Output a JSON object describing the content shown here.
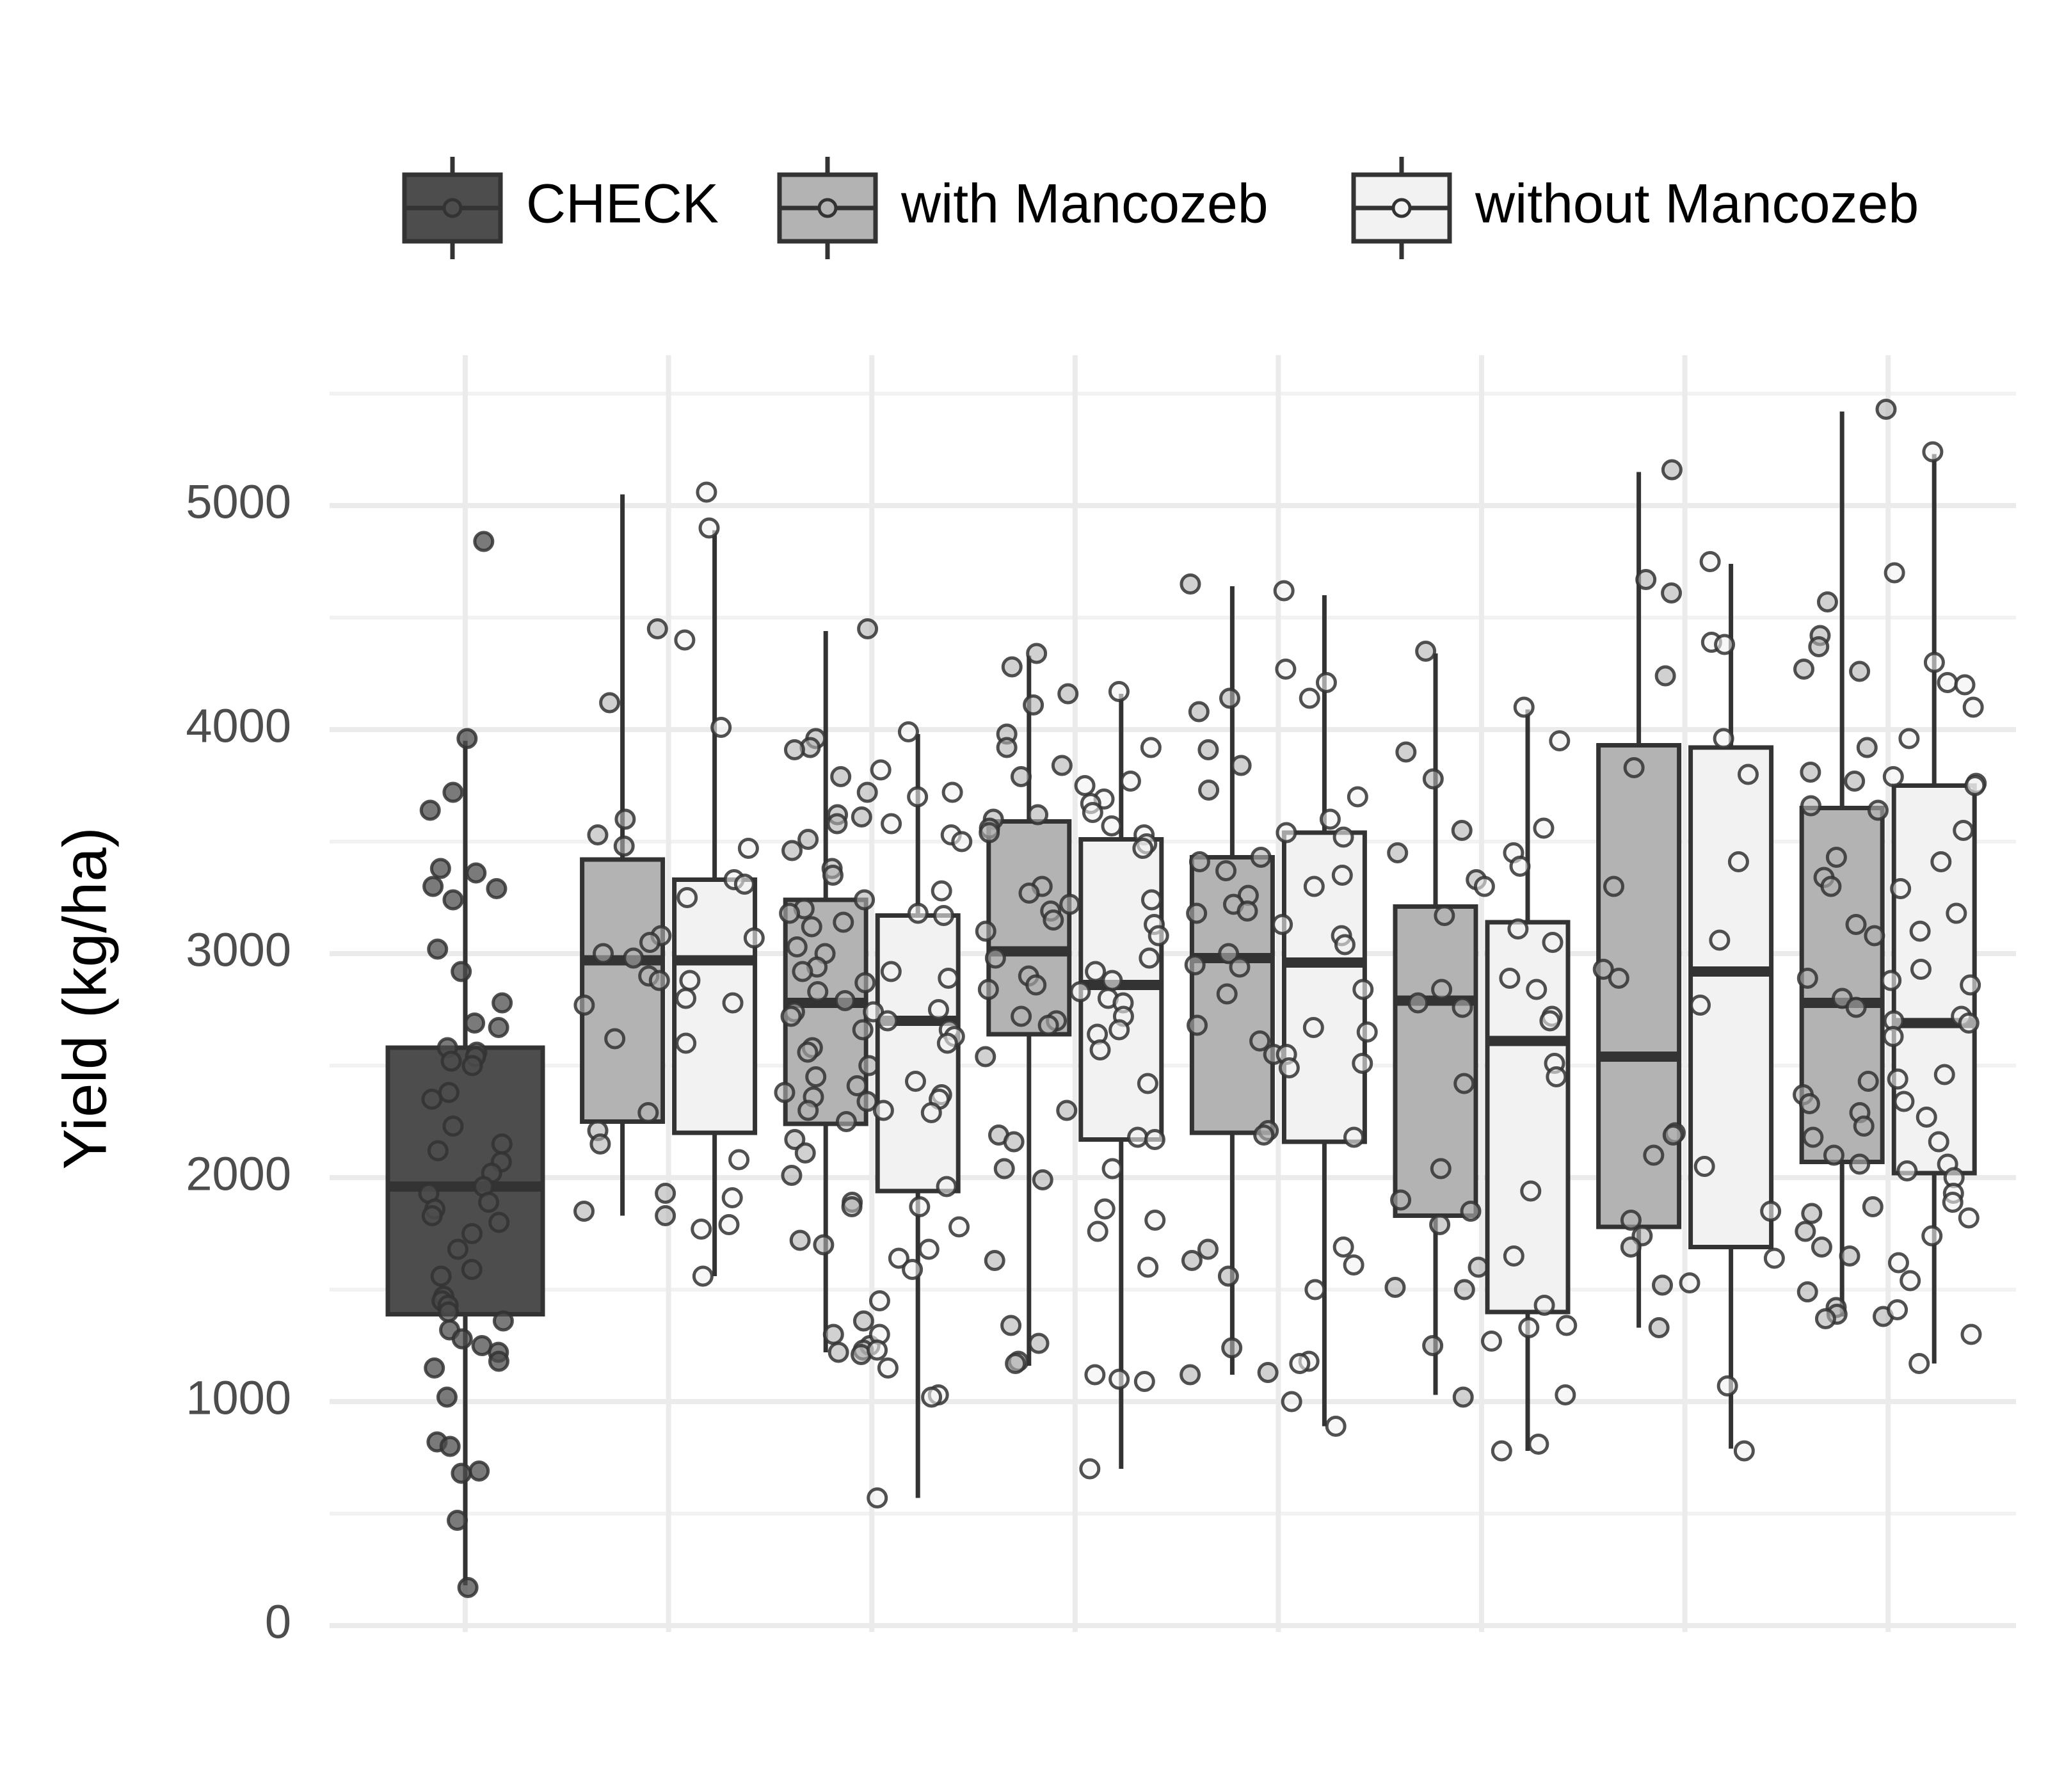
{
  "chart_data": {
    "type": "boxplot",
    "title": "",
    "xlabel": "",
    "ylabel": "Yield (kg/ha)",
    "ylim": [
      0,
      5500
    ],
    "yticks": [
      0,
      1000,
      2000,
      3000,
      4000,
      5000
    ],
    "grid": true,
    "legend_position": "top",
    "legend": [
      {
        "label": "CHECK",
        "color": "#4d4d4d"
      },
      {
        "label": "with Mancozeb",
        "color": "#b3b3b3"
      },
      {
        "label": "without Mancozeb",
        "color": "#f2f2f2"
      }
    ],
    "boxes": [
      {
        "group": 0,
        "series": "CHECK",
        "min": 180,
        "q1": 1390,
        "median": 1960,
        "q3": 2580,
        "max": 3950,
        "points": [
          4840,
          3960,
          3720,
          3640,
          3380,
          3360,
          3300,
          3290,
          3240,
          3020,
          2920,
          2780,
          2690,
          2670,
          2580,
          2560,
          2540,
          2520,
          2500,
          2380,
          2350,
          2230,
          2150,
          2120,
          2070,
          2020,
          1960,
          1930,
          1890,
          1860,
          1830,
          1800,
          1750,
          1680,
          1590,
          1560,
          1470,
          1450,
          1430,
          1400,
          1360,
          1320,
          1280,
          1250,
          1220,
          1180,
          1150,
          1020,
          820,
          800,
          690,
          680,
          470,
          170
        ]
      },
      {
        "group": 1,
        "series": "with Mancozeb",
        "min": 1830,
        "q1": 2250,
        "median": 2970,
        "q3": 3420,
        "max": 5050,
        "points": [
          4450,
          4120,
          3600,
          3530,
          3480,
          3080,
          3050,
          3000,
          2980,
          2900,
          2880,
          2770,
          2620,
          2290,
          2210,
          2150,
          1930,
          1850,
          1830
        ]
      },
      {
        "group": 1,
        "series": "without Mancozeb",
        "min": 1560,
        "q1": 2200,
        "median": 2970,
        "q3": 3330,
        "max": 4890,
        "points": [
          5060,
          4900,
          4400,
          4010,
          3470,
          3330,
          3310,
          3250,
          3070,
          2880,
          2800,
          2780,
          2600,
          2080,
          1910,
          1790,
          1770,
          1560
        ]
      },
      {
        "group": 2,
        "series": "with Mancozeb",
        "min": 1220,
        "q1": 2240,
        "median": 2780,
        "q3": 3240,
        "max": 4440,
        "points": [
          4450,
          3960,
          3920,
          3910,
          3790,
          3720,
          3620,
          3610,
          3580,
          3510,
          3460,
          3380,
          3350,
          3240,
          3200,
          3180,
          3140,
          3120,
          3030,
          3000,
          2940,
          2920,
          2870,
          2830,
          2790,
          2740,
          2720,
          2660,
          2580,
          2560,
          2500,
          2450,
          2410,
          2380,
          2360,
          2340,
          2300,
          2250,
          2170,
          2110,
          2010,
          1890,
          1870,
          1720,
          1700,
          1360,
          1300,
          1250,
          1230,
          1220,
          1210
        ]
      },
      {
        "group": 2,
        "series": "without Mancozeb",
        "min": 570,
        "q1": 1940,
        "median": 2700,
        "q3": 3170,
        "max": 3980,
        "points": [
          3990,
          3820,
          3720,
          3700,
          3580,
          3530,
          3500,
          3280,
          3180,
          3170,
          2920,
          2890,
          2750,
          2740,
          2700,
          2660,
          2630,
          2600,
          2430,
          2370,
          2350,
          2300,
          2290,
          1960,
          1870,
          1780,
          1680,
          1640,
          1590,
          1450,
          1300,
          1230,
          1150,
          1030,
          1020,
          570
        ]
      },
      {
        "group": 3,
        "series": "with Mancozeb",
        "min": 1160,
        "q1": 2640,
        "median": 3010,
        "q3": 3590,
        "max": 4330,
        "points": [
          4340,
          4280,
          4160,
          4110,
          3980,
          3920,
          3840,
          3790,
          3620,
          3600,
          3560,
          3540,
          3300,
          3270,
          3220,
          3190,
          3150,
          3100,
          2980,
          2900,
          2860,
          2840,
          2720,
          2700,
          2680,
          2540,
          2300,
          2190,
          2160,
          2040,
          1990,
          1630,
          1340,
          1260,
          1180,
          1170
        ]
      },
      {
        "group": 3,
        "series": "without Mancozeb",
        "min": 700,
        "q1": 2170,
        "median": 2860,
        "q3": 3510,
        "max": 4160,
        "points": [
          4170,
          3920,
          3770,
          3750,
          3690,
          3670,
          3630,
          3570,
          3530,
          3490,
          3470,
          3240,
          3130,
          3080,
          2980,
          2920,
          2880,
          2830,
          2800,
          2780,
          2720,
          2660,
          2640,
          2570,
          2420,
          2180,
          2170,
          2040,
          1860,
          1810,
          1760,
          1600,
          1120,
          1100,
          1090,
          700
        ]
      },
      {
        "group": 4,
        "series": "with Mancozeb",
        "min": 1120,
        "q1": 2200,
        "median": 2980,
        "q3": 3430,
        "max": 4640,
        "points": [
          4650,
          4140,
          4080,
          3910,
          3840,
          3730,
          3430,
          3410,
          3370,
          3260,
          3220,
          3190,
          3180,
          3000,
          2950,
          2940,
          2820,
          2680,
          2610,
          2550,
          2210,
          2190,
          1680,
          1630,
          1560,
          1240,
          1130,
          1120
        ]
      },
      {
        "group": 4,
        "series": "without Mancozeb",
        "min": 890,
        "q1": 2160,
        "median": 2960,
        "q3": 3540,
        "max": 4600,
        "points": [
          4620,
          4270,
          4210,
          4140,
          3700,
          3600,
          3540,
          3520,
          3350,
          3300,
          3130,
          3080,
          3040,
          2840,
          2670,
          2650,
          2550,
          2510,
          2490,
          2180,
          1690,
          1610,
          1500,
          1180,
          1170,
          1000,
          890
        ]
      },
      {
        "group": 5,
        "series": "with Mancozeb",
        "min": 1030,
        "q1": 1830,
        "median": 2790,
        "q3": 3210,
        "max": 4340,
        "points": [
          4350,
          3900,
          3780,
          3550,
          3450,
          3330,
          3170,
          2840,
          2780,
          2760,
          2420,
          2040,
          1900,
          1850,
          1790,
          1600,
          1510,
          1500,
          1250,
          1020
        ]
      },
      {
        "group": 5,
        "series": "without Mancozeb",
        "min": 780,
        "q1": 1400,
        "median": 2610,
        "q3": 3140,
        "max": 4090,
        "points": [
          4100,
          3950,
          3560,
          3450,
          3390,
          3300,
          3110,
          3050,
          2890,
          2840,
          2720,
          2700,
          2510,
          2450,
          1940,
          1650,
          1430,
          1340,
          1330,
          1270,
          1030,
          810,
          780
        ]
      },
      {
        "group": 6,
        "series": "with Mancozeb",
        "min": 1330,
        "q1": 1780,
        "median": 2540,
        "q3": 3930,
        "max": 5150,
        "points": [
          5160,
          4670,
          4610,
          4240,
          3830,
          3300,
          2930,
          2890,
          2200,
          2190,
          2100,
          1810,
          1740,
          1690,
          1520,
          1330
        ]
      },
      {
        "group": 6,
        "series": "without Mancozeb",
        "min": 790,
        "q1": 1690,
        "median": 2920,
        "q3": 3920,
        "max": 4740,
        "points": [
          4750,
          4390,
          4380,
          3960,
          3800,
          3410,
          3060,
          2770,
          2050,
          1850,
          1640,
          1530,
          1070,
          780
        ]
      },
      {
        "group": 7,
        "series": "with Mancozeb",
        "min": 1380,
        "q1": 2070,
        "median": 2780,
        "q3": 3650,
        "max": 5420,
        "points": [
          5430,
          4570,
          4420,
          4370,
          4270,
          4260,
          3920,
          3810,
          3770,
          3660,
          3640,
          3430,
          3340,
          3300,
          3130,
          3080,
          2890,
          2800,
          2760,
          2430,
          2370,
          2330,
          2290,
          2230,
          2180,
          2100,
          2060,
          1870,
          1840,
          1760,
          1690,
          1650,
          1490,
          1420,
          1390,
          1380,
          1370
        ]
      },
      {
        "group": 7,
        "series": "without Mancozeb",
        "min": 1170,
        "q1": 2020,
        "median": 2690,
        "q3": 3750,
        "max": 5230,
        "points": [
          5240,
          4700,
          4300,
          4210,
          4200,
          4100,
          3960,
          3790,
          3760,
          3750,
          3550,
          3410,
          3290,
          3180,
          3100,
          2930,
          2880,
          2860,
          2720,
          2700,
          2690,
          2630,
          2460,
          2440,
          2340,
          2270,
          2160,
          2060,
          2030,
          2000,
          1930,
          1890,
          1820,
          1740,
          1620,
          1540,
          1410,
          1300,
          1170
        ]
      }
    ]
  }
}
